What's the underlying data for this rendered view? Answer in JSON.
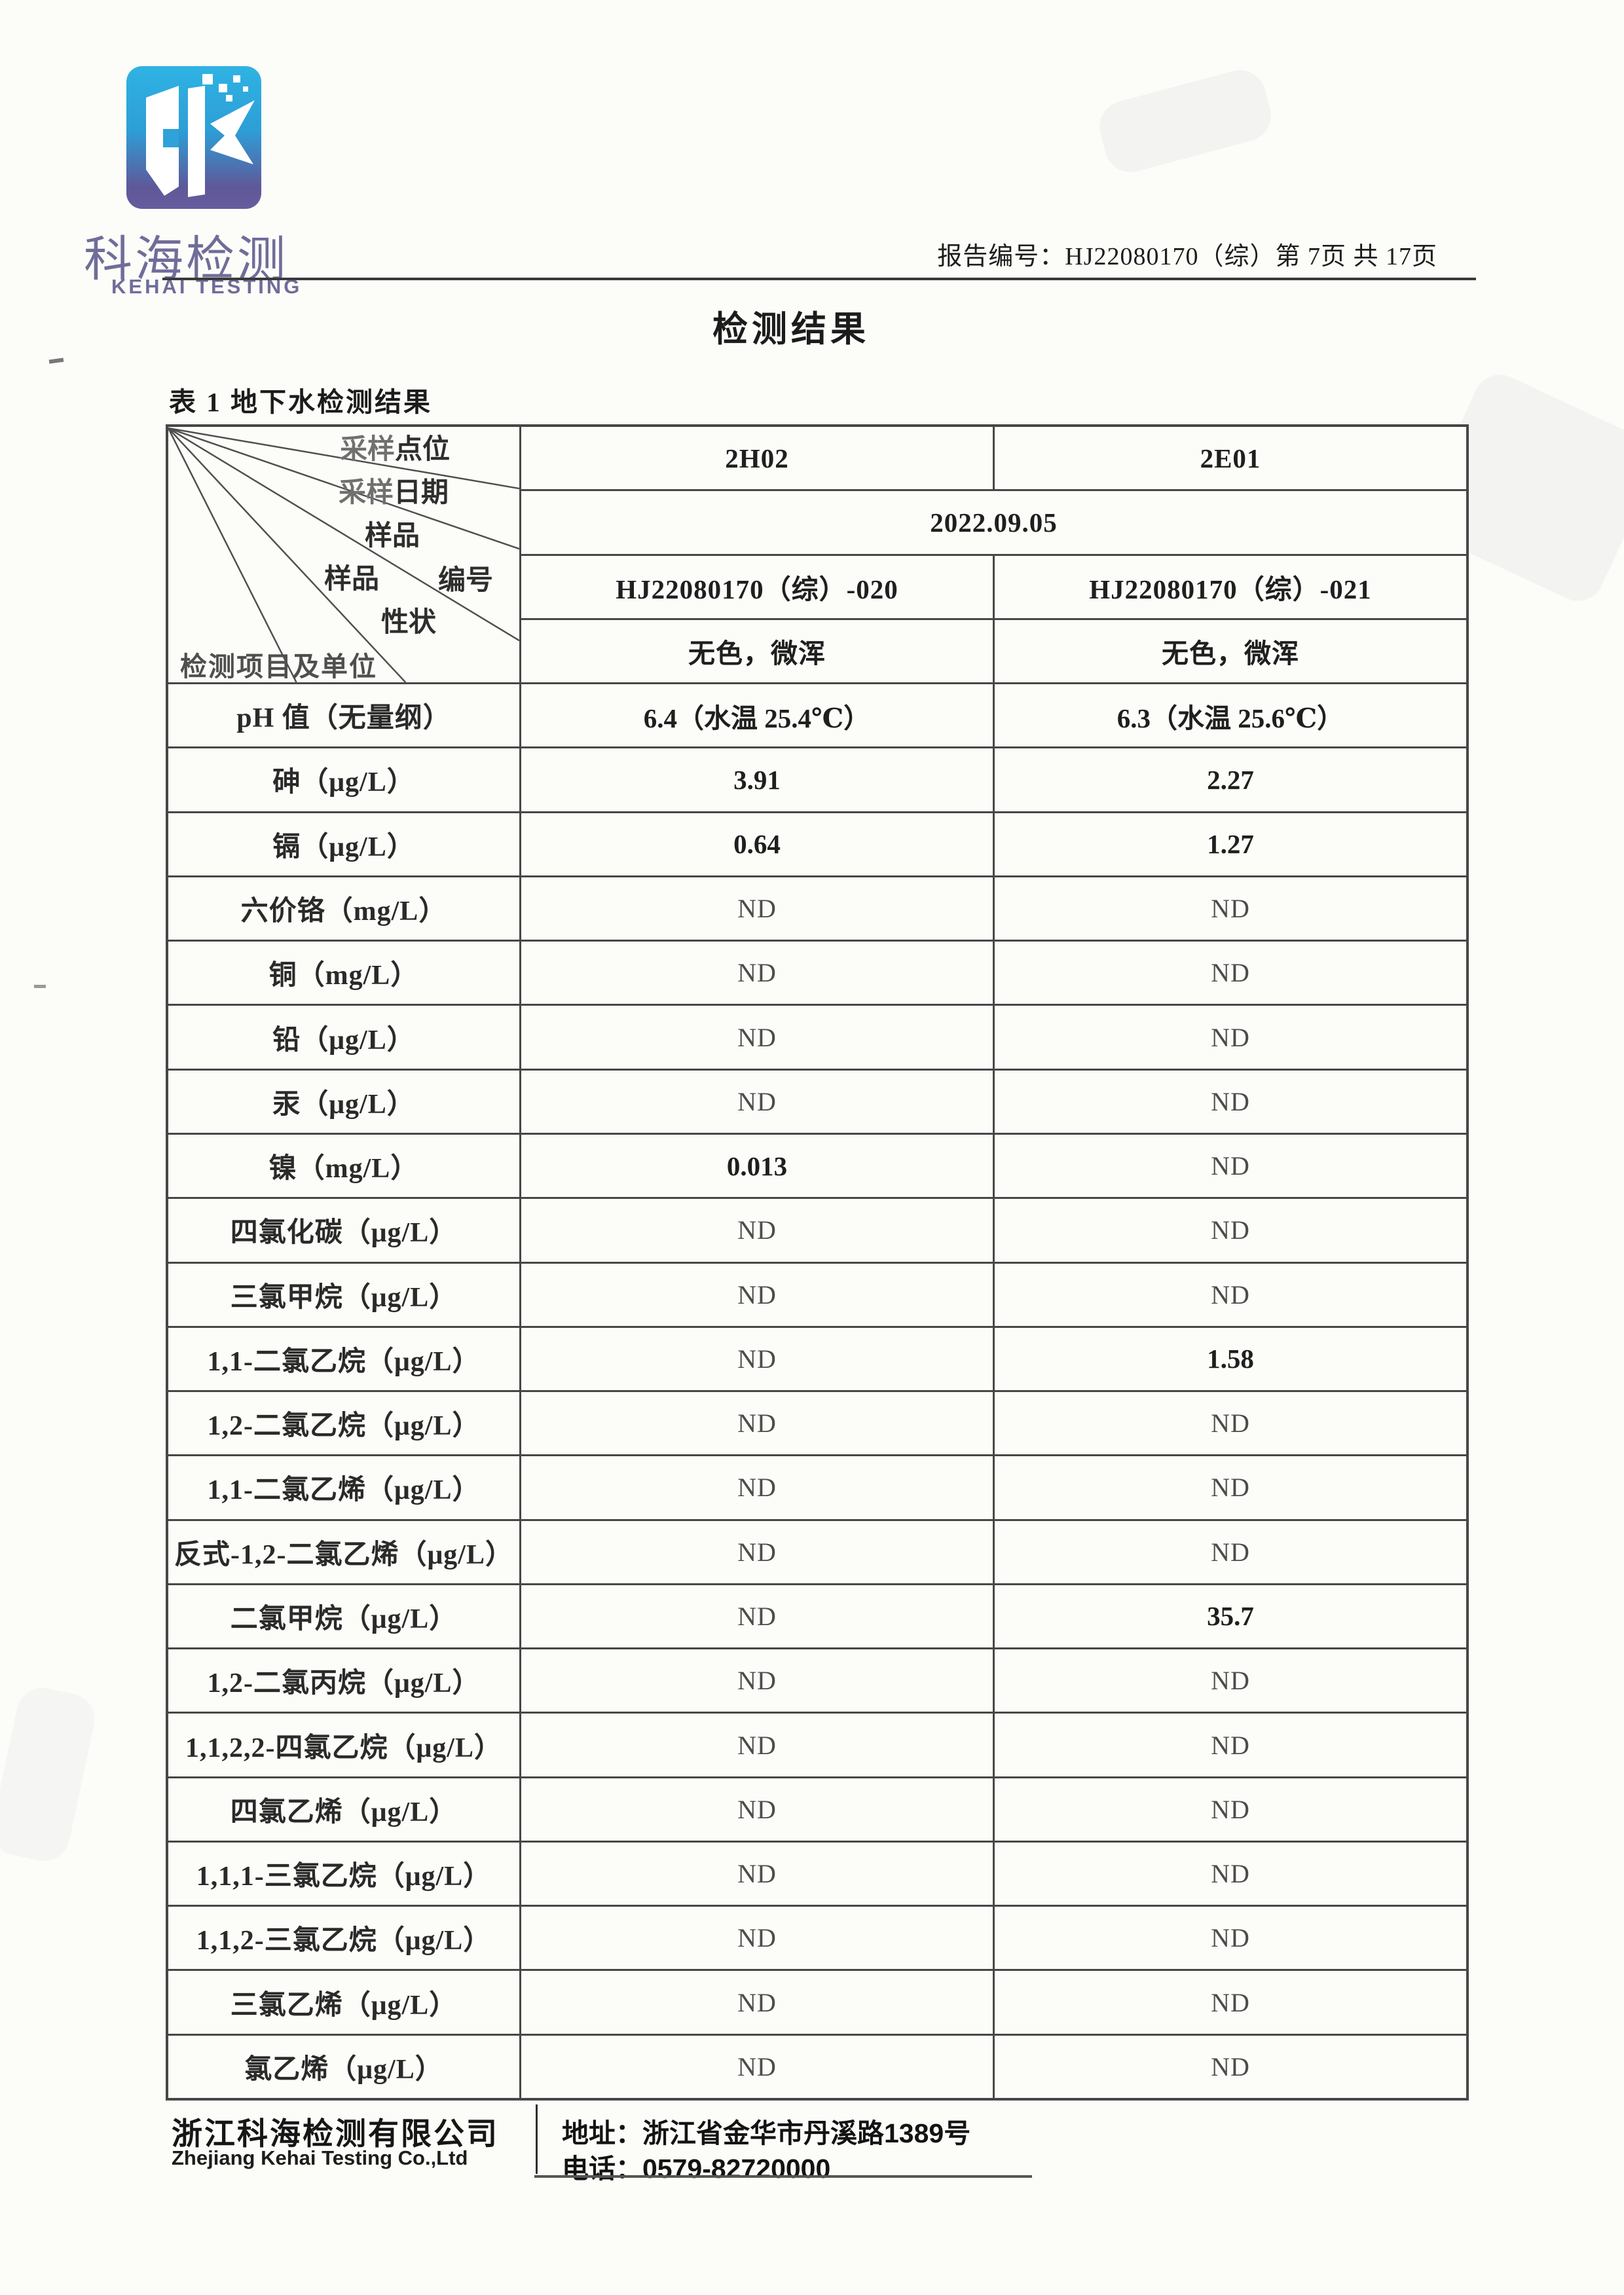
{
  "logo": {
    "cn": "科海检测",
    "en": "KEHAI TESTING",
    "gradient_top": "#2fb3e3",
    "gradient_bottom": "#655c9c",
    "text_color": "#6f6d99"
  },
  "header": {
    "report_line": "报告编号：HJ22080170（综）第 7页 共 17页"
  },
  "title": "检测结果",
  "table_caption": "表 1 地下水检测结果",
  "table": {
    "corner": {
      "sampling_point_prefix": "采样",
      "sampling_point": "点位",
      "sampling_date_prefix": "采样",
      "sampling_date": "日期",
      "sample_no_top": "样品",
      "sample_no_bottom": "编号",
      "sample_prop_top": "样品",
      "sample_prop_bottom": "性状",
      "items_and_units": "检测项目及单位"
    },
    "points": [
      "2H02",
      "2E01"
    ],
    "date": "2022.09.05",
    "sample_ids": [
      "HJ22080170（综）-020",
      "HJ22080170（综）-021"
    ],
    "characters": [
      "无色，微浑",
      "无色，微浑"
    ],
    "rows": [
      [
        "pH 值（无量纲）",
        "6.4（水温 25.4℃）",
        "6.3（水温 25.6℃）"
      ],
      [
        "砷（μg/L）",
        "3.91",
        "2.27"
      ],
      [
        "镉（μg/L）",
        "0.64",
        "1.27"
      ],
      [
        "六价铬（mg/L）",
        "ND",
        "ND"
      ],
      [
        "铜（mg/L）",
        "ND",
        "ND"
      ],
      [
        "铅（μg/L）",
        "ND",
        "ND"
      ],
      [
        "汞（μg/L）",
        "ND",
        "ND"
      ],
      [
        "镍（mg/L）",
        "0.013",
        "ND"
      ],
      [
        "四氯化碳（μg/L）",
        "ND",
        "ND"
      ],
      [
        "三氯甲烷（μg/L）",
        "ND",
        "ND"
      ],
      [
        "1,1-二氯乙烷（μg/L）",
        "ND",
        "1.58"
      ],
      [
        "1,2-二氯乙烷（μg/L）",
        "ND",
        "ND"
      ],
      [
        "1,1-二氯乙烯（μg/L）",
        "ND",
        "ND"
      ],
      [
        "反式-1,2-二氯乙烯（μg/L）",
        "ND",
        "ND"
      ],
      [
        "二氯甲烷（μg/L）",
        "ND",
        "35.7"
      ],
      [
        "1,2-二氯丙烷（μg/L）",
        "ND",
        "ND"
      ],
      [
        "1,1,2,2-四氯乙烷（μg/L）",
        "ND",
        "ND"
      ],
      [
        "四氯乙烯（μg/L）",
        "ND",
        "ND"
      ],
      [
        "1,1,1-三氯乙烷（μg/L）",
        "ND",
        "ND"
      ],
      [
        "1,1,2-三氯乙烷（μg/L）",
        "ND",
        "ND"
      ],
      [
        "三氯乙烯（μg/L）",
        "ND",
        "ND"
      ],
      [
        "氯乙烯（μg/L）",
        "ND",
        "ND"
      ]
    ]
  },
  "footer": {
    "company_cn": "浙江科海检测有限公司",
    "company_en": "Zhejiang Kehai Testing Co.,Ltd",
    "address": "地址：浙江省金华市丹溪路1389号",
    "phone": "电话：0579-82720000"
  }
}
